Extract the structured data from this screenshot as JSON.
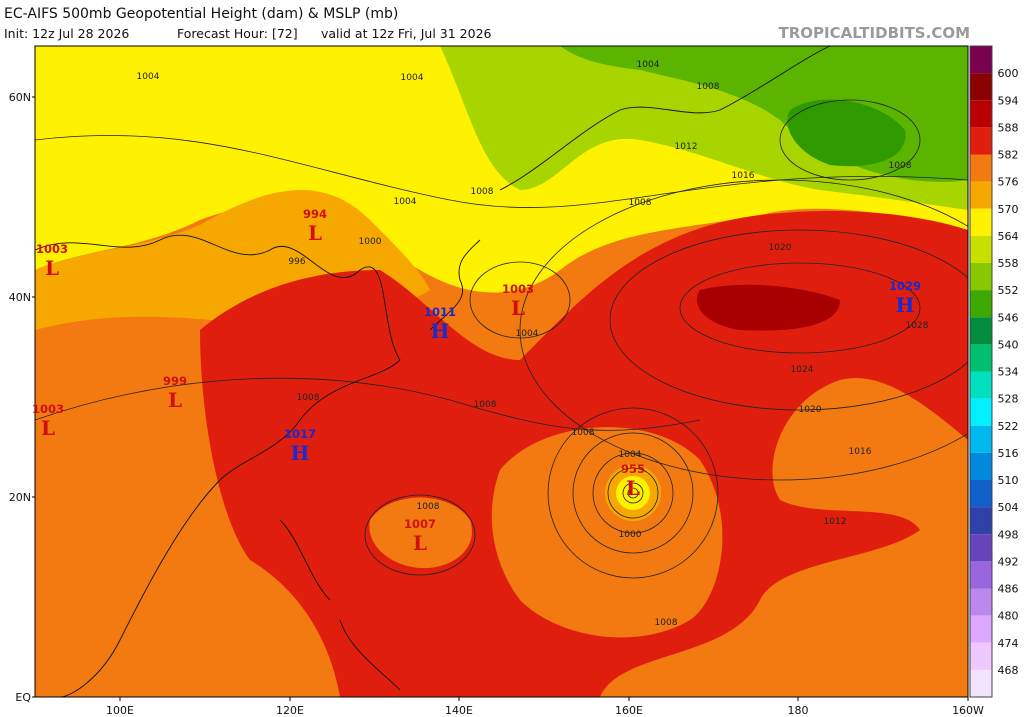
{
  "header": {
    "title": "EC-AIFS 500mb Geopotential Height (dam) & MSLP (mb)",
    "init": "Init: 12z Jul 28 2026",
    "forecast_hour": "Forecast Hour: [72]",
    "valid": "valid at 12z Fri, Jul 31 2026",
    "site": "TROPICALTIDBITS.COM"
  },
  "axes": {
    "lat_labels": [
      "60N",
      "40N",
      "20N",
      "EQ"
    ],
    "lon_labels": [
      "100E",
      "120E",
      "140E",
      "160E",
      "180",
      "160W"
    ]
  },
  "colorbar": {
    "levels": [
      600,
      594,
      588,
      582,
      576,
      570,
      564,
      558,
      552,
      546,
      540,
      534,
      528,
      522,
      516,
      510,
      504,
      498,
      492,
      486,
      480,
      474,
      468
    ]
  },
  "pressure_centers": [
    {
      "letter": "L",
      "value": 994
    },
    {
      "letter": "L",
      "value": 1003
    },
    {
      "letter": "L",
      "value": 999
    },
    {
      "letter": "L",
      "value": 1003
    },
    {
      "letter": "H",
      "value": 1011
    },
    {
      "letter": "H",
      "value": 1017
    },
    {
      "letter": "L",
      "value": 1003
    },
    {
      "letter": "H",
      "value": 1029
    },
    {
      "letter": "L",
      "value": 955
    },
    {
      "letter": "L",
      "value": 1007
    }
  ],
  "isobar_labels": [
    1004,
    1004,
    1004,
    1008,
    1012,
    1016,
    1008,
    1008,
    1020,
    1028,
    1024,
    1020,
    1016,
    1012,
    1008,
    1008,
    1004,
    1000,
    1008,
    1008,
    1004,
    996,
    1000,
    1004,
    1008,
    1008
  ]
}
